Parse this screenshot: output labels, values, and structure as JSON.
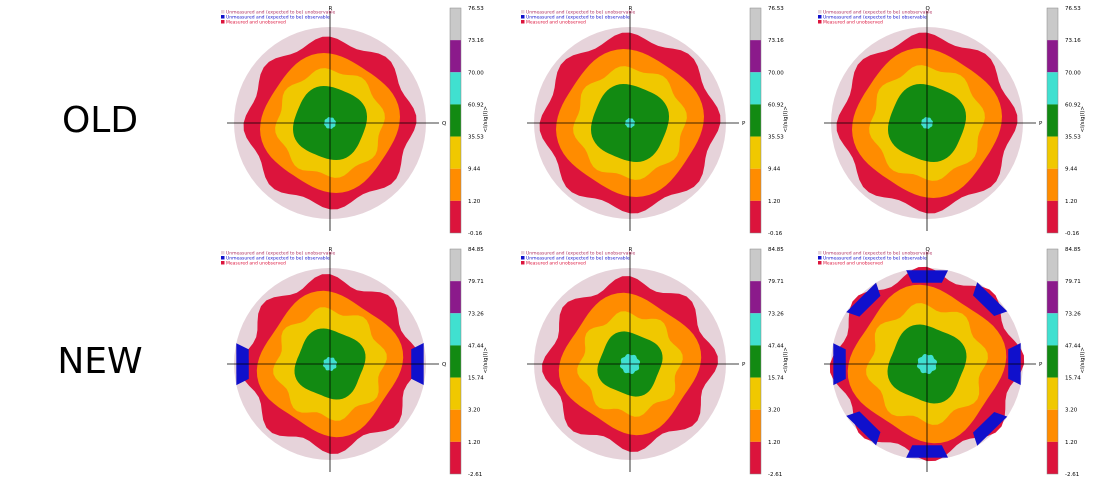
{
  "rows": [
    {
      "label": "OLD",
      "ticks": [
        "76.53",
        "73.16",
        "70.00",
        "60.92",
        "35.53",
        "9.44",
        "1.20",
        "-0.16"
      ]
    },
    {
      "label": "NEW",
      "ticks": [
        "84.85",
        "79.71",
        "73.26",
        "47.44",
        "15.74",
        "3.20",
        "1.20",
        "-2.61"
      ]
    }
  ],
  "legend": {
    "item1": "Unmeasured and (expected to be) unobservable",
    "item2": "Unmeasured and (expected to be) observable",
    "item3": "Measured and unobserved"
  },
  "colorbar_unit": "<I/sig(I)>",
  "colors": [
    "#c9c9c9",
    "#8b1a8b",
    "#40e0d0",
    "#128a12",
    "#f0c800",
    "#ff8c00",
    "#dc143c"
  ],
  "status_colors": {
    "unobservable": "#e6d3da",
    "observable": "#1010cc",
    "unobserved": "#dc143c"
  },
  "panels": [
    {
      "row": 0,
      "col": 0,
      "axis_top": "R",
      "axis_right": "Q"
    },
    {
      "row": 0,
      "col": 1,
      "axis_top": "R",
      "axis_right": "P"
    },
    {
      "row": 0,
      "col": 2,
      "axis_top": "Q",
      "axis_right": "P"
    },
    {
      "row": 1,
      "col": 0,
      "axis_top": "R",
      "axis_right": "Q"
    },
    {
      "row": 1,
      "col": 1,
      "axis_top": "R",
      "axis_right": "P"
    },
    {
      "row": 1,
      "col": 2,
      "axis_top": "Q",
      "axis_right": "P"
    }
  ],
  "chart_data": {
    "type": "heatmap",
    "title": "",
    "layout": "2 rows (OLD, NEW) x 3 panels (reciprocal-space projections)",
    "colorbar_label": "<I/sig(I)>",
    "series": [
      {
        "name": "OLD",
        "bins": [
          "-0.16",
          "1.20",
          "9.44",
          "35.53",
          "60.92",
          "70.00",
          "73.16",
          "76.53"
        ]
      },
      {
        "name": "NEW",
        "bins": [
          "-2.61",
          "1.20",
          "3.20",
          "15.74",
          "47.44",
          "73.26",
          "79.71",
          "84.85"
        ]
      }
    ]
  }
}
